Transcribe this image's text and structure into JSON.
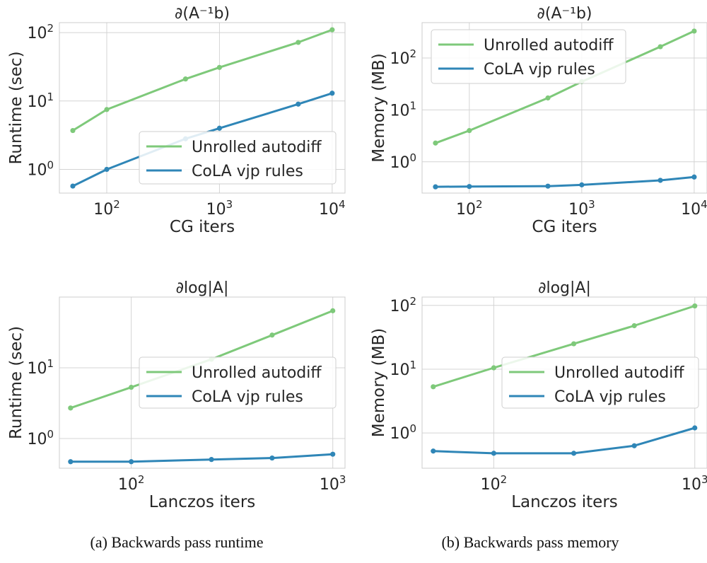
{
  "colors": {
    "unrolled": "#7ec97a",
    "cola": "#2f86b7",
    "grid": "#d4d4d4",
    "spine": "#cccccc"
  },
  "captions": {
    "a": "(a) Backwards pass runtime",
    "b": "(b) Backwards pass memory"
  },
  "chart_data": [
    {
      "type": "line",
      "title": "∂(A⁻¹b)",
      "xlabel": "CG iters",
      "ylabel": "Runtime (sec)",
      "xscale": "log",
      "yscale": "log",
      "xlim": [
        38,
        13000
      ],
      "ylim": [
        0.45,
        140
      ],
      "xticks": [
        {
          "value": 100,
          "base": "10",
          "exp": "2"
        },
        {
          "value": 1000,
          "base": "10",
          "exp": "3"
        },
        {
          "value": 10000,
          "base": "10",
          "exp": "4"
        }
      ],
      "yticks": [
        {
          "value": 1,
          "base": "10",
          "exp": "0"
        },
        {
          "value": 10,
          "base": "10",
          "exp": "1"
        },
        {
          "value": 100,
          "base": "10",
          "exp": "2"
        }
      ],
      "grid": true,
      "legend": "center-right",
      "series": [
        {
          "name": "Unrolled autodiff",
          "color_key": "unrolled",
          "x": [
            50,
            100,
            500,
            1000,
            5000,
            10000
          ],
          "y": [
            3.7,
            7.5,
            21,
            31,
            72,
            110
          ]
        },
        {
          "name": "CoLA vjp rules",
          "color_key": "cola",
          "x": [
            50,
            100,
            500,
            1000,
            5000,
            10000
          ],
          "y": [
            0.57,
            1.0,
            2.8,
            4.0,
            9.0,
            13
          ]
        }
      ]
    },
    {
      "type": "line",
      "title": "∂(A⁻¹b)",
      "xlabel": "CG iters",
      "ylabel": "Memory (MB)",
      "xscale": "log",
      "yscale": "log",
      "xlim": [
        38,
        13000
      ],
      "ylim": [
        0.25,
        480
      ],
      "xticks": [
        {
          "value": 100,
          "base": "10",
          "exp": "2"
        },
        {
          "value": 1000,
          "base": "10",
          "exp": "3"
        },
        {
          "value": 10000,
          "base": "10",
          "exp": "4"
        }
      ],
      "yticks": [
        {
          "value": 1,
          "base": "10",
          "exp": "0"
        },
        {
          "value": 10,
          "base": "10",
          "exp": "1"
        },
        {
          "value": 100,
          "base": "10",
          "exp": "2"
        }
      ],
      "grid": true,
      "legend": "top-left",
      "series": [
        {
          "name": "Unrolled autodiff",
          "color_key": "unrolled",
          "x": [
            50,
            100,
            500,
            1000,
            5000,
            10000
          ],
          "y": [
            2.3,
            4.0,
            17,
            35,
            165,
            330
          ]
        },
        {
          "name": "CoLA vjp rules",
          "color_key": "cola",
          "x": [
            50,
            100,
            500,
            1000,
            5000,
            10000
          ],
          "y": [
            0.33,
            0.335,
            0.34,
            0.36,
            0.44,
            0.51
          ]
        }
      ]
    },
    {
      "type": "line",
      "title": "∂log|A|",
      "xlabel": "Lanczos iters",
      "ylabel": "Runtime (sec)",
      "xscale": "log",
      "yscale": "log",
      "xlim": [
        44,
        1150
      ],
      "ylim": [
        0.38,
        100
      ],
      "xticks": [
        {
          "value": 100,
          "base": "10",
          "exp": "2"
        },
        {
          "value": 1000,
          "base": "10",
          "exp": "3"
        }
      ],
      "yticks": [
        {
          "value": 1,
          "base": "10",
          "exp": "0"
        },
        {
          "value": 10,
          "base": "10",
          "exp": "1"
        }
      ],
      "grid": true,
      "legend": "center-right",
      "series": [
        {
          "name": "Unrolled autodiff",
          "color_key": "unrolled",
          "x": [
            50,
            100,
            250,
            500,
            1000
          ],
          "y": [
            2.7,
            5.3,
            13.2,
            29,
            64
          ]
        },
        {
          "name": "CoLA vjp rules",
          "color_key": "cola",
          "x": [
            50,
            100,
            250,
            500,
            1000
          ],
          "y": [
            0.47,
            0.47,
            0.505,
            0.53,
            0.6
          ]
        }
      ]
    },
    {
      "type": "line",
      "title": "∂log|A|",
      "xlabel": "Lanczos iters",
      "ylabel": "Memory (MB)",
      "xscale": "log",
      "yscale": "log",
      "xlim": [
        44,
        1150
      ],
      "ylim": [
        0.28,
        135
      ],
      "xticks": [
        {
          "value": 100,
          "base": "10",
          "exp": "2"
        },
        {
          "value": 1000,
          "base": "10",
          "exp": "3"
        }
      ],
      "yticks": [
        {
          "value": 1,
          "base": "10",
          "exp": "0"
        },
        {
          "value": 10,
          "base": "10",
          "exp": "1"
        },
        {
          "value": 100,
          "base": "10",
          "exp": "2"
        }
      ],
      "grid": true,
      "legend": "center-right",
      "series": [
        {
          "name": "Unrolled autodiff",
          "color_key": "unrolled",
          "x": [
            50,
            100,
            250,
            500,
            1000
          ],
          "y": [
            5.3,
            10.5,
            25,
            48,
            98
          ]
        },
        {
          "name": "CoLA vjp rules",
          "color_key": "cola",
          "x": [
            50,
            100,
            250,
            500,
            1000
          ],
          "y": [
            0.52,
            0.48,
            0.48,
            0.63,
            1.2
          ]
        }
      ]
    }
  ]
}
